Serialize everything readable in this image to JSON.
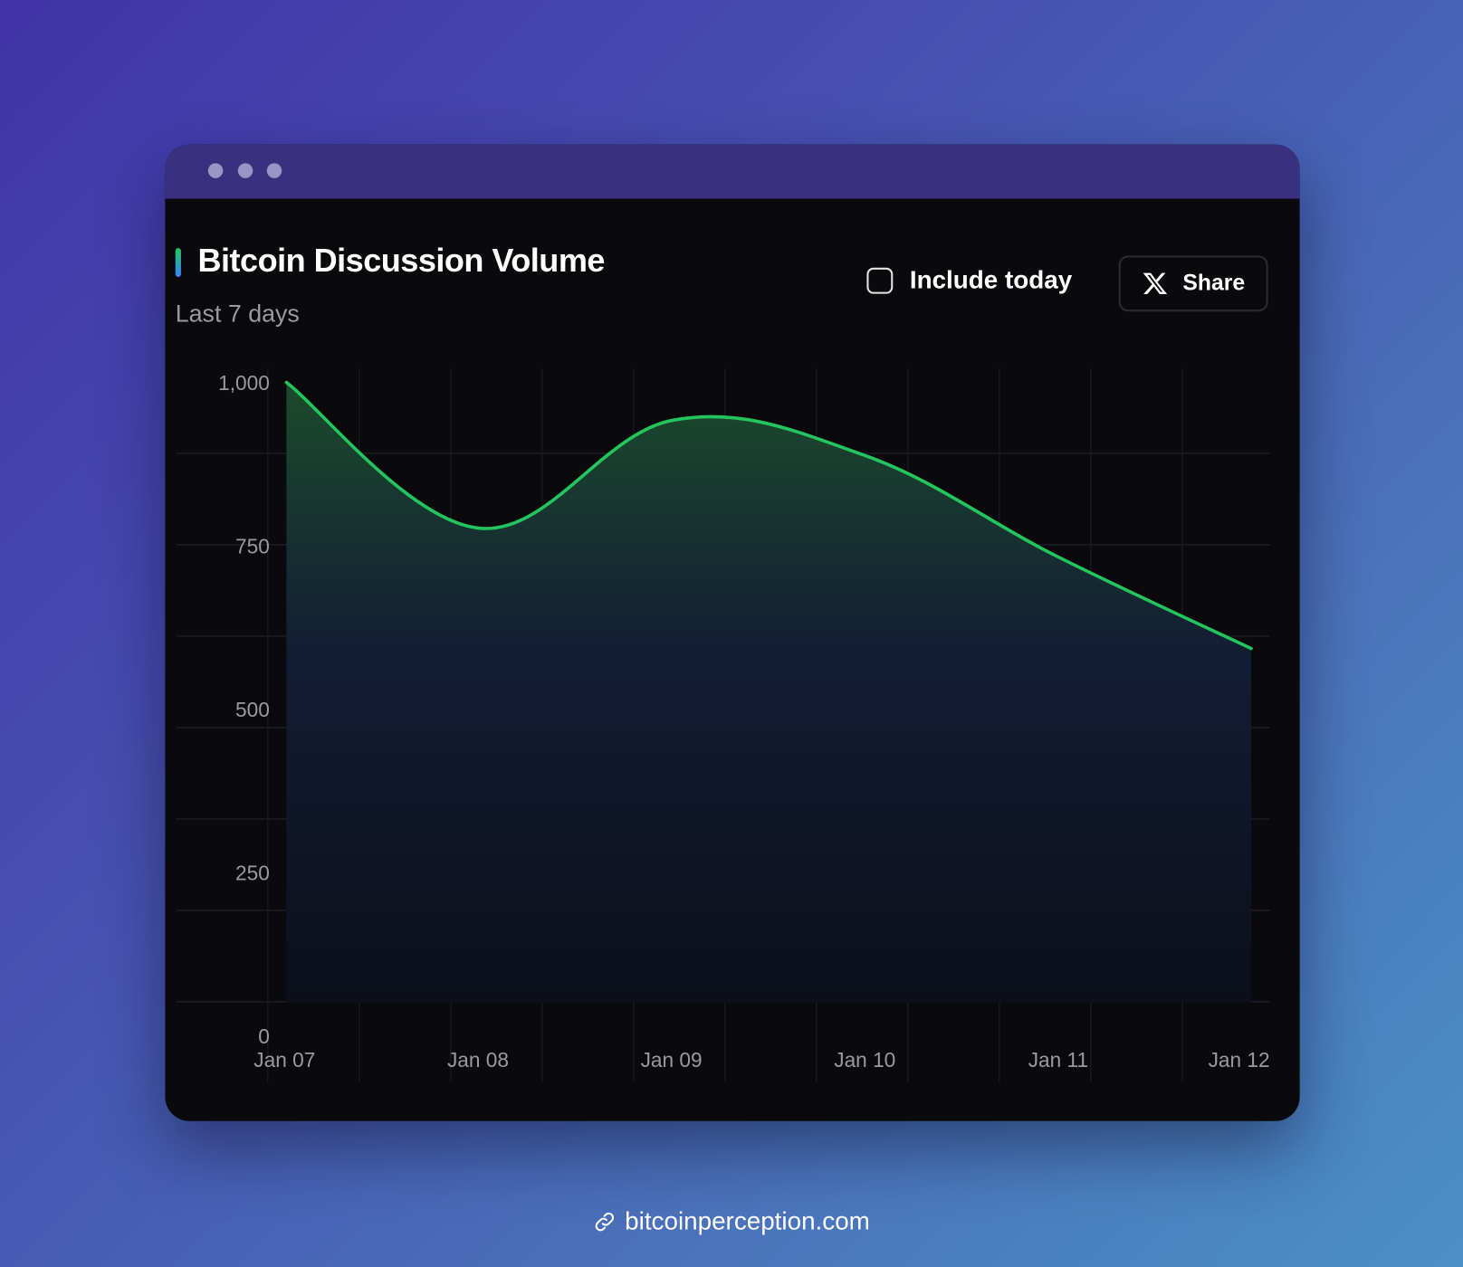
{
  "window": {
    "controls": [
      "dot",
      "dot",
      "dot"
    ]
  },
  "header": {
    "title": "Bitcoin Discussion Volume",
    "subtitle": "Last 7 days",
    "include_today_label": "Include today",
    "include_today_checked": false,
    "share_label": "Share",
    "share_icon": "x-logo-icon"
  },
  "colors": {
    "line": "#22c55e",
    "fill_top": "#1c4a2c",
    "fill_bottom": "#0e1424",
    "accent_top": "#22c55e",
    "accent_bottom": "#3b82f6"
  },
  "chart_data": {
    "type": "area",
    "title": "Bitcoin Discussion Volume",
    "subtitle": "Last 7 days",
    "categories": [
      "Jan 07",
      "Jan 08",
      "Jan 09",
      "Jan 10",
      "Jan 11",
      "Jan 12"
    ],
    "values": [
      1000,
      777,
      942,
      888,
      733,
      593
    ],
    "ylim": [
      0,
      1000
    ],
    "yticks": [
      "0",
      "250",
      "500",
      "750",
      "1,000"
    ],
    "ytick_values": [
      0,
      250,
      500,
      750,
      1000
    ],
    "grid": true,
    "curve": "smooth"
  },
  "footer": {
    "icon": "link-icon",
    "text": "bitcoinperception.com"
  }
}
